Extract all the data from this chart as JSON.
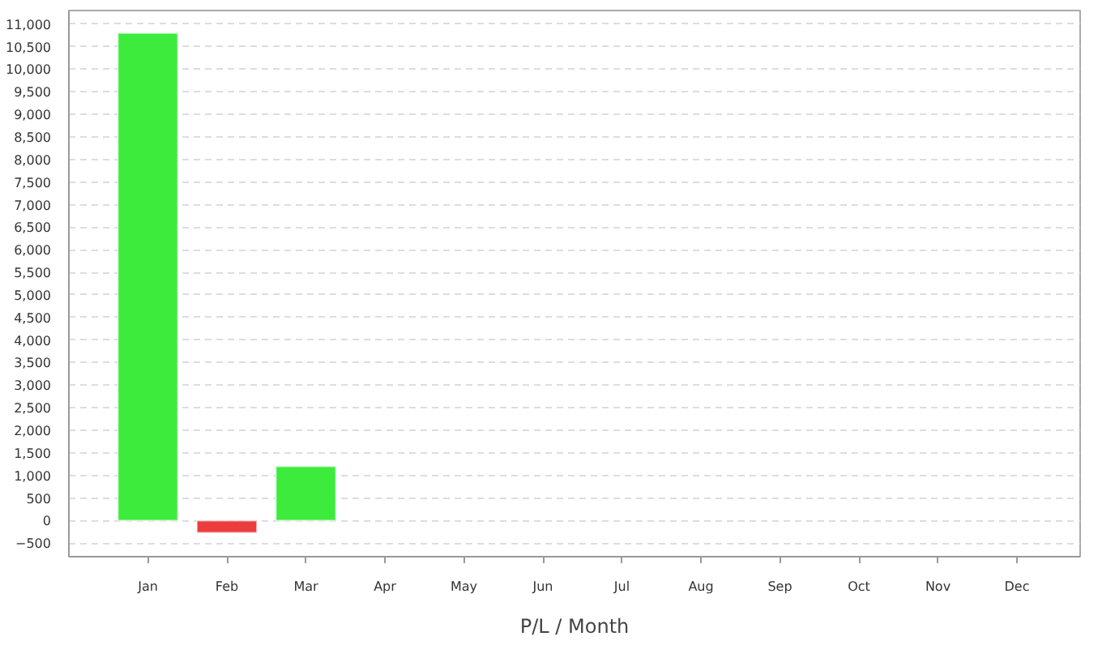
{
  "chart_data": {
    "type": "bar",
    "xlabel": "P/L / Month",
    "categories": [
      "Jan",
      "Feb",
      "Mar",
      "Apr",
      "May",
      "Jun",
      "Jul",
      "Aug",
      "Sep",
      "Oct",
      "Nov",
      "Dec"
    ],
    "values": [
      10800,
      -270,
      1200,
      null,
      null,
      null,
      null,
      null,
      null,
      null,
      null,
      null
    ],
    "colors": [
      "#3deb3d",
      "#eb3d3d",
      "#3deb3d",
      null,
      null,
      null,
      null,
      null,
      null,
      null,
      null,
      null
    ],
    "ylim": [
      -800,
      11300
    ],
    "yticks": [
      -500,
      0,
      500,
      {
        "value": 1000,
        "label": "1,000"
      },
      {
        "value": 1500,
        "label": "1,500"
      },
      {
        "value": 2000,
        "label": "2,000"
      },
      {
        "value": 2500,
        "label": "2,500"
      },
      {
        "value": 3000,
        "label": "3,000"
      },
      {
        "value": 3500,
        "label": "3,500"
      },
      {
        "value": 4000,
        "label": "4,000"
      },
      {
        "value": 4500,
        "label": "4,500"
      },
      {
        "value": 5000,
        "label": "5,000"
      },
      {
        "value": 5500,
        "label": "5,500"
      },
      {
        "value": 6000,
        "label": "6,000"
      },
      {
        "value": 6500,
        "label": "6,500"
      },
      {
        "value": 7000,
        "label": "7,000"
      },
      {
        "value": 7500,
        "label": "7,500"
      },
      {
        "value": 8000,
        "label": "8,000"
      },
      {
        "value": 8500,
        "label": "8,500"
      },
      {
        "value": 9000,
        "label": "9,000"
      },
      {
        "value": 9500,
        "label": "9,500"
      },
      {
        "value": 10000,
        "label": "10,000"
      },
      {
        "value": 10500,
        "label": "10,500"
      },
      {
        "value": 11000,
        "label": "11,000"
      }
    ],
    "grid": "y"
  }
}
